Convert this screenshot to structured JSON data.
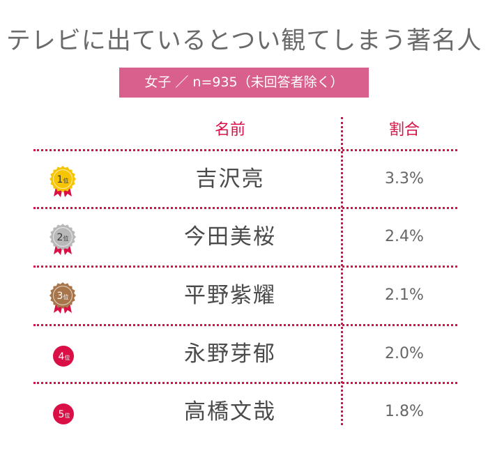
{
  "title": "テレビに出ているとつい観てしまう著名人",
  "subtitle": "女子 ／ n=935（未回答者除く）",
  "headers": {
    "name": "名前",
    "ratio": "割合"
  },
  "rank_suffix": "位",
  "colors": {
    "accent": "#d90f46",
    "subtitle_bg": "#d9608c",
    "gold": "#f6c400",
    "silver": "#b8b8b8",
    "bronze": "#a8754a"
  },
  "chart_data": {
    "type": "table",
    "title": "テレビに出ているとつい観てしまう著名人",
    "subtitle": "女子 ／ n=935（未回答者除く）",
    "columns": [
      "名前",
      "割合"
    ],
    "rows": [
      {
        "rank": "1",
        "medal": "gold",
        "name": "吉沢亮",
        "percent": "3.3%",
        "value": 3.3
      },
      {
        "rank": "2",
        "medal": "silver",
        "name": "今田美桜",
        "percent": "2.4%",
        "value": 2.4
      },
      {
        "rank": "3",
        "medal": "bronze",
        "name": "平野紫耀",
        "percent": "2.1%",
        "value": 2.1
      },
      {
        "rank": "4",
        "medal": "circle",
        "name": "永野芽郁",
        "percent": "2.0%",
        "value": 2.0
      },
      {
        "rank": "5",
        "medal": "circle",
        "name": "高橋文哉",
        "percent": "1.8%",
        "value": 1.8
      }
    ]
  }
}
